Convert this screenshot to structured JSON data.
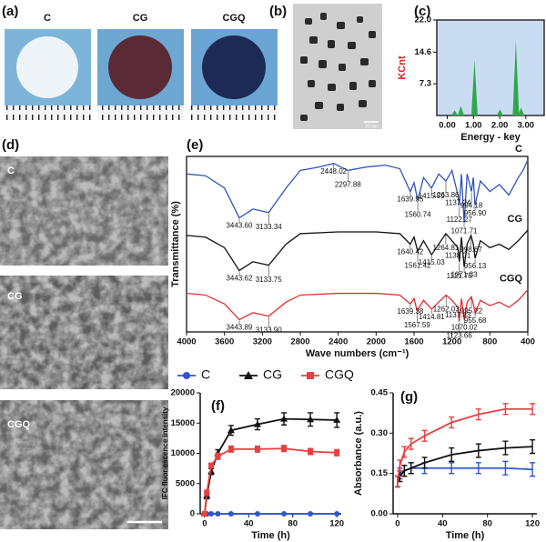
{
  "panels": {
    "a": {
      "label": "(a)",
      "samples": [
        "C",
        "CG",
        "CGQ"
      ]
    },
    "b": {
      "label": "(b)",
      "scale": "20 nm"
    },
    "c": {
      "label": "(c)"
    },
    "d": {
      "label": "(d)",
      "samples": [
        "C",
        "CG",
        "CGQ"
      ]
    },
    "e": {
      "label": "(e)"
    },
    "f": {
      "label": "(f)"
    },
    "g": {
      "label": "(g)"
    }
  },
  "chart_data": [
    {
      "type": "spectrum",
      "xlabel": "Energy - key",
      "ylabel": "KCnt",
      "ylabel_color": "#e02020",
      "xlim": [
        -0.4,
        3.7
      ],
      "ylim": [
        0,
        22
      ],
      "xticks": [
        {
          "value": 0,
          "label": "0.00"
        },
        {
          "value": 1,
          "label": "1.00"
        },
        {
          "value": 2,
          "label": "2.00"
        },
        {
          "value": 3,
          "label": "3.00"
        }
      ],
      "yticks": [
        7.3,
        14.6,
        {
          "value": 22,
          "label": "22.0"
        }
      ],
      "background": "#c9dcf2",
      "series": [
        {
          "color": "#2ea84a",
          "x": [
            0.28,
            0.52,
            1.04,
            2.01,
            2.62,
            2.82
          ],
          "values": [
            1.2,
            2.2,
            12.8,
            1.4,
            17.2,
            1.8
          ]
        }
      ]
    },
    {
      "type": "line",
      "xlabel": "Wave numbers (cm⁻¹)",
      "ylabel": "Transmittance (%)",
      "xlim": [
        4000,
        400
      ],
      "ylim": [
        0,
        100
      ],
      "xticks": [
        4000,
        3600,
        3200,
        2800,
        2400,
        2000,
        1600,
        1200,
        800,
        400
      ],
      "series": [
        {
          "name": "C",
          "color": "#2f55b8",
          "x": [
            4000,
            3800,
            3600,
            3443.6,
            3300,
            3133.34,
            2950,
            2800,
            2600,
            2448.02,
            2297.88,
            2100,
            1900,
            1750,
            1639.95,
            1600,
            1560.74,
            1500,
            1415.59,
            1340,
            1263.86,
            1200,
            1137.24,
            1122.27,
            1100,
            1071.71,
            1040,
            994.18,
            975,
            956.9,
            900,
            800,
            700,
            600,
            500,
            450,
            400
          ],
          "values": [
            90,
            89,
            82,
            65,
            70,
            68,
            82,
            92,
            94,
            96,
            92,
            94,
            95,
            93,
            80,
            85,
            75,
            88,
            82,
            90,
            86,
            92,
            78,
            72,
            90,
            62,
            90,
            80,
            88,
            72,
            86,
            80,
            84,
            78,
            88,
            92,
            98
          ],
          "peak_labels": [
            {
              "value": 3443.6,
              "label": "3443.60"
            },
            {
              "value": 3133.34,
              "label": "3133.34"
            },
            {
              "value": 2448.02,
              "label": "2448.02"
            },
            {
              "value": 2297.88,
              "label": "2297.88"
            },
            {
              "value": 1639.95,
              "label": "1639.95"
            },
            {
              "value": 1560.74,
              "label": "1560.74"
            },
            {
              "value": 1415.59,
              "label": "1415.59"
            },
            {
              "value": 1263.86,
              "label": "1263.86"
            },
            {
              "value": 1137.24,
              "label": "1137.24"
            },
            {
              "value": 1122.27,
              "label": "1122.27"
            },
            {
              "value": 1071.71,
              "label": "1071.71"
            },
            {
              "value": 994.18,
              "label": "994.18"
            },
            {
              "value": 956.9,
              "label": "956.90"
            }
          ]
        },
        {
          "name": "CG",
          "color": "#111111",
          "x": [
            4000,
            3800,
            3600,
            3443.62,
            3300,
            3133.75,
            2950,
            2800,
            2400,
            2000,
            1750,
            1640.42,
            1600,
            1561.42,
            1500,
            1415.03,
            1340,
            1264.81,
            1200,
            1138.01,
            1121.75,
            1100,
            1071.33,
            1040,
            998.67,
            975,
            956.13,
            900,
            800,
            700,
            600,
            500,
            400
          ],
          "values": [
            55,
            54,
            48,
            35,
            40,
            38,
            50,
            56,
            57,
            57,
            56,
            50,
            54,
            46,
            52,
            44,
            50,
            56,
            52,
            48,
            40,
            54,
            37,
            50,
            55,
            50,
            42,
            52,
            48,
            50,
            47,
            52,
            58
          ],
          "peak_labels": [
            {
              "value": 3443.62,
              "label": "3443.62"
            },
            {
              "value": 3133.75,
              "label": "3133.75"
            },
            {
              "value": 1640.42,
              "label": "1640.42"
            },
            {
              "value": 1561.42,
              "label": "1561.42"
            },
            {
              "value": 1415.03,
              "label": "1415.03"
            },
            {
              "value": 1264.81,
              "label": "1264.81"
            },
            {
              "value": 1138.01,
              "label": "1138.01"
            },
            {
              "value": 1121.75,
              "label": "1121.75"
            },
            {
              "value": 1071.33,
              "label": "1071.33"
            },
            {
              "value": 998.67,
              "label": "998.67"
            },
            {
              "value": 956.13,
              "label": "956.13"
            }
          ]
        },
        {
          "name": "CGQ",
          "color": "#e03030",
          "x": [
            4000,
            3800,
            3600,
            3443.89,
            3300,
            3133.9,
            2950,
            2800,
            2400,
            2000,
            1750,
            1639.38,
            1600,
            1567.59,
            1500,
            1414.81,
            1340,
            1262.03,
            1200,
            1137.83,
            1123.66,
            1100,
            1070.02,
            1040,
            995.22,
            975,
            955.68,
            900,
            800,
            700,
            600,
            500,
            400
          ],
          "values": [
            22,
            21,
            16,
            7,
            11,
            9,
            17,
            21,
            22,
            22,
            21,
            16,
            19,
            12,
            18,
            13,
            17,
            21,
            18,
            14,
            6,
            19,
            7,
            17,
            20,
            16,
            11,
            18,
            15,
            17,
            14,
            18,
            24
          ],
          "peak_labels": [
            {
              "value": 3443.89,
              "label": "3443.89"
            },
            {
              "value": 3133.9,
              "label": "3133.90"
            },
            {
              "value": 1639.38,
              "label": "1639.38"
            },
            {
              "value": 1567.59,
              "label": "1567.59"
            },
            {
              "value": 1414.81,
              "label": "1414.81"
            },
            {
              "value": 1262.03,
              "label": "1262.03"
            },
            {
              "value": 1137.83,
              "label": "1137.83"
            },
            {
              "value": 1123.66,
              "label": "1123.66"
            },
            {
              "value": 1070.02,
              "label": "1070.02"
            },
            {
              "value": 995.22,
              "label": "995.22"
            },
            {
              "value": 955.68,
              "label": "955.68"
            }
          ]
        }
      ]
    },
    {
      "type": "line",
      "xlabel": "Time (h)",
      "ylabel": "IFC fluor escence intensity",
      "xlim": [
        -4,
        124
      ],
      "ylim": [
        0,
        20000
      ],
      "xticks": [
        0,
        40,
        80,
        120
      ],
      "yticks": [
        0,
        5000,
        10000,
        15000,
        20000
      ],
      "x": [
        0,
        2,
        6,
        12,
        24,
        48,
        72,
        96,
        120
      ],
      "series": [
        {
          "name": "C",
          "color": "#2f55d0",
          "marker": "circle",
          "values": [
            0,
            0,
            0,
            0,
            0,
            0,
            0,
            0,
            0
          ],
          "errors": [
            0,
            0,
            0,
            0,
            0,
            0,
            0,
            0,
            0
          ]
        },
        {
          "name": "CG",
          "color": "#111111",
          "marker": "triangle",
          "values": [
            0,
            3000,
            7000,
            10000,
            13800,
            14800,
            15700,
            15600,
            15500
          ],
          "errors": [
            0,
            500,
            500,
            600,
            800,
            900,
            1000,
            1100,
            1200
          ]
        },
        {
          "name": "CGQ",
          "color": "#e84040",
          "marker": "square",
          "values": [
            0,
            3500,
            8000,
            9500,
            10700,
            10700,
            10800,
            10300,
            10100
          ],
          "errors": [
            0,
            400,
            400,
            500,
            500,
            500,
            500,
            500,
            500
          ]
        }
      ]
    },
    {
      "type": "line",
      "xlabel": "Time (h)",
      "ylabel": "Absorbance (a.u.)",
      "xlim": [
        -4,
        124
      ],
      "ylim": [
        0,
        0.45
      ],
      "xticks": [
        0,
        40,
        80,
        120
      ],
      "yticks": [
        {
          "value": 0,
          "label": "0.00"
        },
        0.15,
        {
          "value": 0.3,
          "label": "0.30"
        },
        0.45
      ],
      "x": [
        0,
        2,
        6,
        12,
        24,
        48,
        72,
        96,
        120
      ],
      "series": [
        {
          "color": "#2f55d0",
          "values": [
            0.12,
            0.15,
            0.16,
            0.17,
            0.17,
            0.17,
            0.17,
            0.17,
            0.165
          ],
          "errors": [
            0.02,
            0.02,
            0.02,
            0.02,
            0.02,
            0.02,
            0.02,
            0.025,
            0.025
          ]
        },
        {
          "color": "#111111",
          "values": [
            0.12,
            0.14,
            0.16,
            0.17,
            0.19,
            0.22,
            0.235,
            0.245,
            0.25
          ],
          "errors": [
            0.02,
            0.02,
            0.02,
            0.02,
            0.02,
            0.025,
            0.025,
            0.025,
            0.025
          ]
        },
        {
          "color": "#e84040",
          "values": [
            0.12,
            0.18,
            0.23,
            0.26,
            0.29,
            0.34,
            0.37,
            0.39,
            0.39
          ],
          "errors": [
            0.02,
            0.02,
            0.02,
            0.02,
            0.02,
            0.02,
            0.02,
            0.02,
            0.02
          ]
        }
      ]
    }
  ]
}
